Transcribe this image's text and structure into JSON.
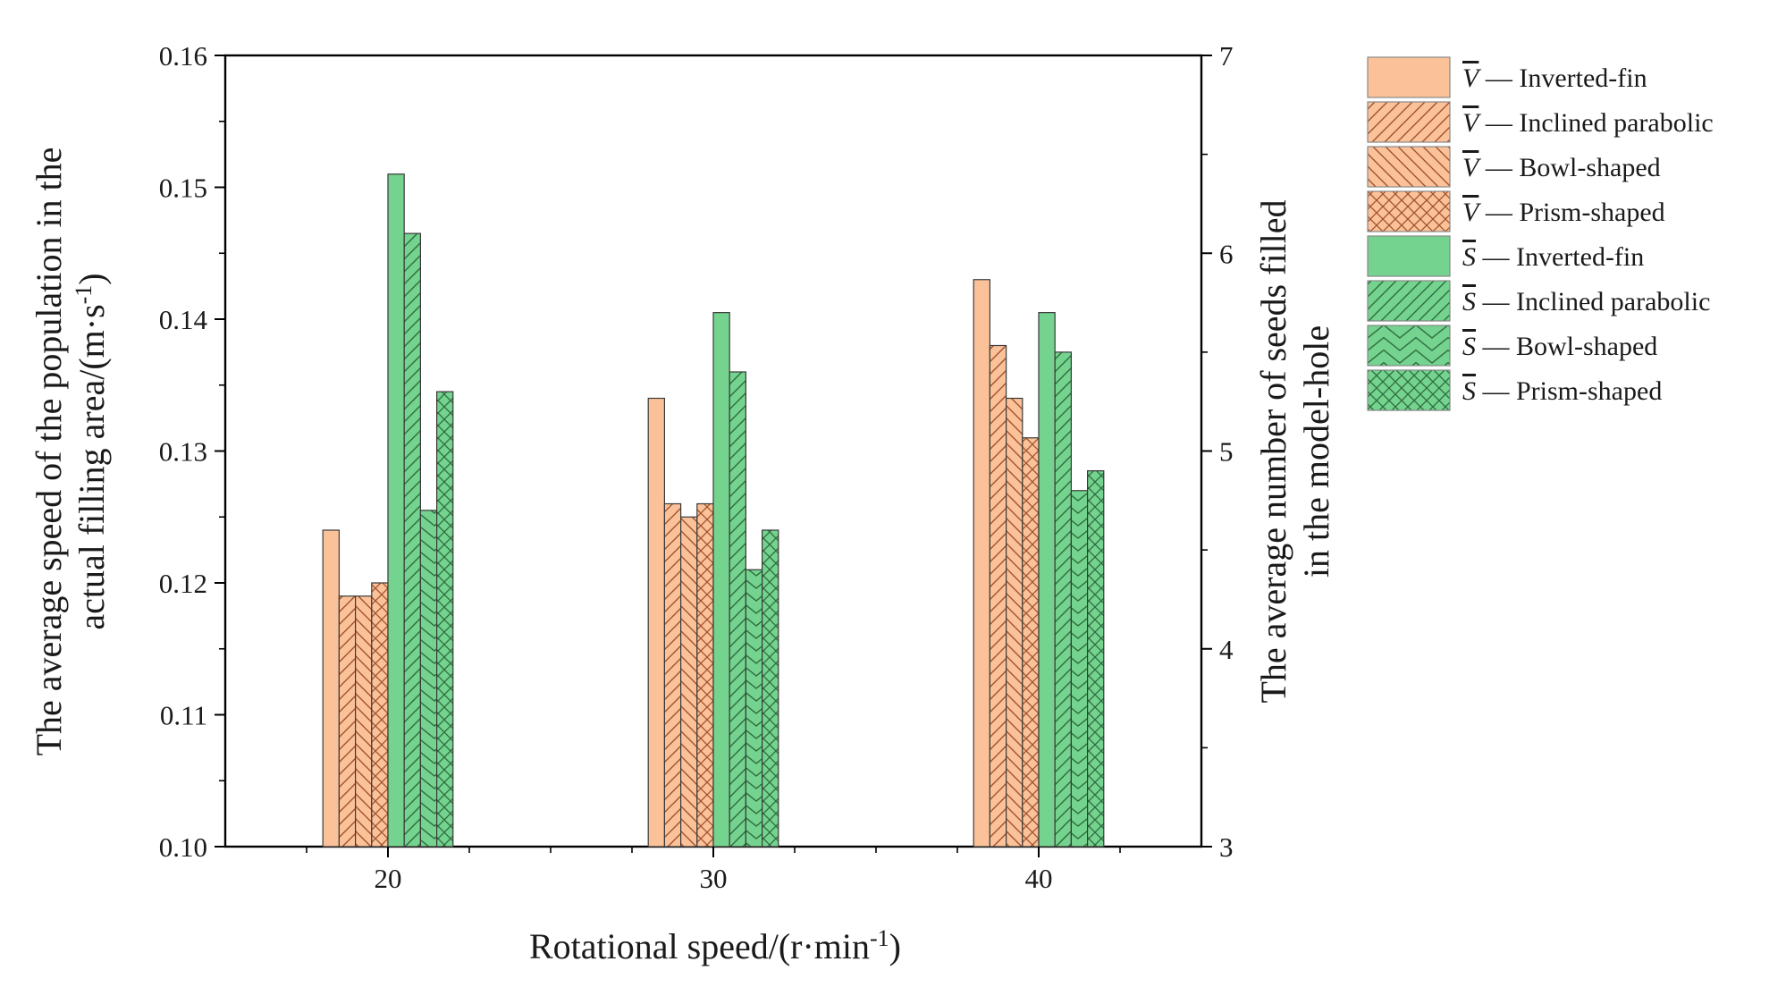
{
  "chart_data": {
    "type": "bar",
    "categories": [
      "20",
      "30",
      "40"
    ],
    "xlabel_parts": {
      "base": "Rotational speed/(r·min",
      "sup": "-1",
      "end": ")"
    },
    "ylabel_left": {
      "line1": "The average speed of the population in the",
      "line2_base": "actual filling area/(m·s",
      "line2_sup": "-1",
      "line2_end": ")"
    },
    "ylabel_right": {
      "line1": "The average number of seeds filled",
      "line2": "in the model-hole"
    },
    "ylim_left": [
      0.1,
      0.16
    ],
    "yticks_left": [
      "0.10",
      "0.11",
      "0.12",
      "0.13",
      "0.14",
      "0.15",
      "0.16"
    ],
    "ylim_right": [
      3,
      7
    ],
    "yticks_right": [
      "3",
      "4",
      "5",
      "6",
      "7"
    ],
    "legend_position": "top-right-outside",
    "grid": false,
    "colors": {
      "V": "#fbc299",
      "S": "#74d38e",
      "V_hatch": "#a0522d",
      "S_hatch": "#2e6b3e",
      "edge": "#3a3a3a"
    },
    "series": [
      {
        "name": "Inverted-fin",
        "symbol": "V",
        "axis": "left",
        "pattern": "solid",
        "values": [
          0.124,
          0.134,
          0.143
        ]
      },
      {
        "name": "Inclined parabolic",
        "symbol": "V",
        "axis": "left",
        "pattern": "forward",
        "values": [
          0.119,
          0.126,
          0.138
        ]
      },
      {
        "name": "Bowl-shaped",
        "symbol": "V",
        "axis": "left",
        "pattern": "back",
        "values": [
          0.119,
          0.125,
          0.134
        ]
      },
      {
        "name": "Prism-shaped",
        "symbol": "V",
        "axis": "left",
        "pattern": "cross",
        "values": [
          0.12,
          0.126,
          0.131
        ]
      },
      {
        "name": "Inverted-fin",
        "symbol": "S",
        "axis": "right",
        "pattern": "solid",
        "values": [
          6.4,
          5.7,
          5.7
        ]
      },
      {
        "name": "Inclined parabolic",
        "symbol": "S",
        "axis": "right",
        "pattern": "forward",
        "values": [
          6.1,
          5.4,
          5.5
        ]
      },
      {
        "name": "Bowl-shaped",
        "symbol": "S",
        "axis": "right",
        "pattern": "chevron",
        "values": [
          4.7,
          4.4,
          4.8
        ]
      },
      {
        "name": "Prism-shaped",
        "symbol": "S",
        "axis": "right",
        "pattern": "cross",
        "values": [
          5.3,
          4.6,
          4.9
        ]
      }
    ]
  }
}
